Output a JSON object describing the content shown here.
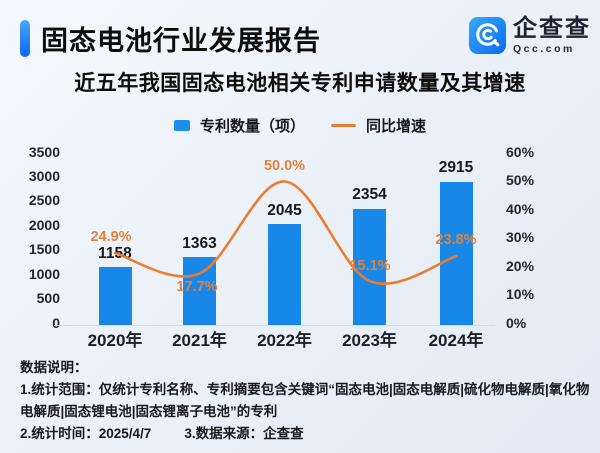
{
  "header": {
    "title": "固态电池行业发展报告",
    "logo": {
      "name": "企查查",
      "domain": "Qcc.com"
    }
  },
  "subtitle": "近五年我国固态电池相关专利申请数量及其增速",
  "legend": {
    "bars": "专利数量（项）",
    "line": "同比增速"
  },
  "chart_data": {
    "type": "bar",
    "categories": [
      "2020年",
      "2021年",
      "2022年",
      "2023年",
      "2024年"
    ],
    "series": [
      {
        "name": "专利数量（项）",
        "type": "bar",
        "axis": "left",
        "values": [
          1158,
          1363,
          2045,
          2354,
          2915
        ],
        "data_labels": [
          "1158",
          "1363",
          "2045",
          "2354",
          "2915"
        ],
        "color": "#1787e8"
      },
      {
        "name": "同比增速",
        "type": "line",
        "axis": "right",
        "unit": "%",
        "values": [
          24.9,
          17.7,
          50.0,
          15.1,
          23.8
        ],
        "data_labels": [
          "24.9%",
          "17.7%",
          "50.0%",
          "15.1%",
          "23.8%"
        ],
        "color": "#ed7c31"
      }
    ],
    "left_axis": {
      "min": 0,
      "max": 3500,
      "step": 500,
      "ticks": [
        "0",
        "500",
        "1000",
        "1500",
        "2000",
        "2500",
        "3000",
        "3500"
      ]
    },
    "right_axis": {
      "min": 0,
      "max": 60,
      "step": 10,
      "ticks": [
        "0%",
        "10%",
        "20%",
        "30%",
        "40%",
        "50%",
        "60%"
      ]
    },
    "grid": false,
    "legend_position": "top",
    "title": "近五年我国固态电池相关专利申请数量及其增速"
  },
  "notes": {
    "heading": "数据说明：",
    "line1": "1.统计范围：仅统计专利名称、专利摘要包含关键词“固态电池|固态电解质|硫化物电解质|氧化物电解质|固态锂电池|固态锂离子电池”的专利",
    "line2_time": "2.统计时间：2025/4/7",
    "line2_source": "3.数据来源：企查查"
  },
  "colors": {
    "bar": "#1787e8",
    "line": "#ed7c31",
    "pct_label": "#e0823c",
    "accent": "#0b66f5",
    "logo_blue": "#1083f2",
    "baseline": "#d7dbe2"
  }
}
